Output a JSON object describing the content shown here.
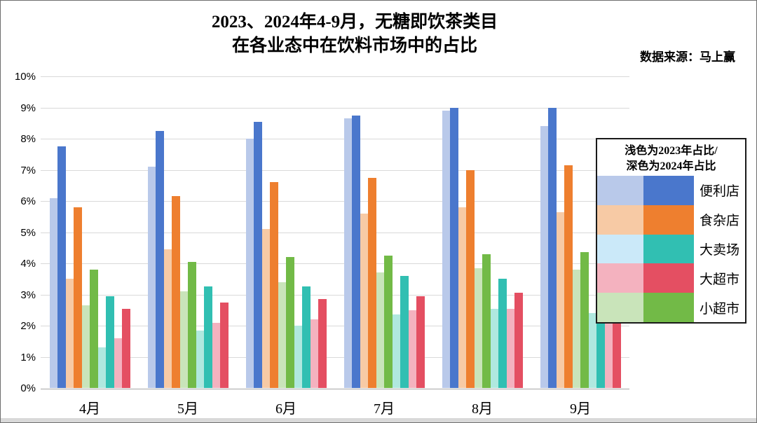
{
  "header": {
    "title_line1": "2023、2024年4-9月，无糖即饮茶类目",
    "title_line2": "在各业态中在饮料市场中的占比",
    "source": "数据来源：马上赢"
  },
  "chart_data": {
    "type": "bar",
    "title": "2023、2024年4-9月，无糖即饮茶类目在各业态中在饮料市场中的占比",
    "categories": [
      "4月",
      "5月",
      "6月",
      "7月",
      "8月",
      "9月"
    ],
    "ylim": [
      0,
      10
    ],
    "grid": true,
    "y_ticks": [
      "0%",
      "1%",
      "2%",
      "3%",
      "4%",
      "5%",
      "6%",
      "7%",
      "8%",
      "9%",
      "10%"
    ],
    "series": [
      {
        "name": "便利店",
        "light": "#b9c9ea",
        "dark": "#4a77cc",
        "y2023": [
          6.1,
          7.1,
          8.0,
          8.65,
          8.9,
          8.4
        ],
        "y2024": [
          7.75,
          8.25,
          8.55,
          8.75,
          9.0,
          9.0
        ]
      },
      {
        "name": "食杂店",
        "light": "#f7caa5",
        "dark": "#ee7f2f",
        "y2023": [
          3.5,
          4.45,
          5.1,
          5.6,
          5.8,
          5.65
        ],
        "y2024": [
          5.8,
          6.15,
          6.6,
          6.75,
          7.0,
          7.15
        ]
      },
      {
        "name": "小超市",
        "light": "#c9e4ba",
        "dark": "#72ba47",
        "y2023": [
          2.65,
          3.1,
          3.4,
          3.7,
          3.85,
          3.8
        ],
        "y2024": [
          3.8,
          4.05,
          4.2,
          4.25,
          4.3,
          4.35
        ]
      },
      {
        "name": "大卖场",
        "light": "#b0e8df",
        "dark": "#31bfb2",
        "legend_light": "#cbe9f9",
        "y2023": [
          1.3,
          1.85,
          2.0,
          2.35,
          2.55,
          2.4
        ],
        "y2024": [
          2.95,
          3.25,
          3.25,
          3.6,
          3.5,
          3.2
        ]
      },
      {
        "name": "大超市",
        "light": "#f4b2bf",
        "dark": "#e44f62",
        "y2023": [
          1.6,
          2.1,
          2.2,
          2.5,
          2.55,
          2.35
        ],
        "y2024": [
          2.55,
          2.75,
          2.85,
          2.95,
          3.05,
          2.95
        ]
      }
    ],
    "legend": {
      "title_line1": "浅色为2023年占比/",
      "title_line2": "深色为2024年占比",
      "order": [
        "便利店",
        "食杂店",
        "大卖场",
        "大超市",
        "小超市"
      ]
    }
  }
}
